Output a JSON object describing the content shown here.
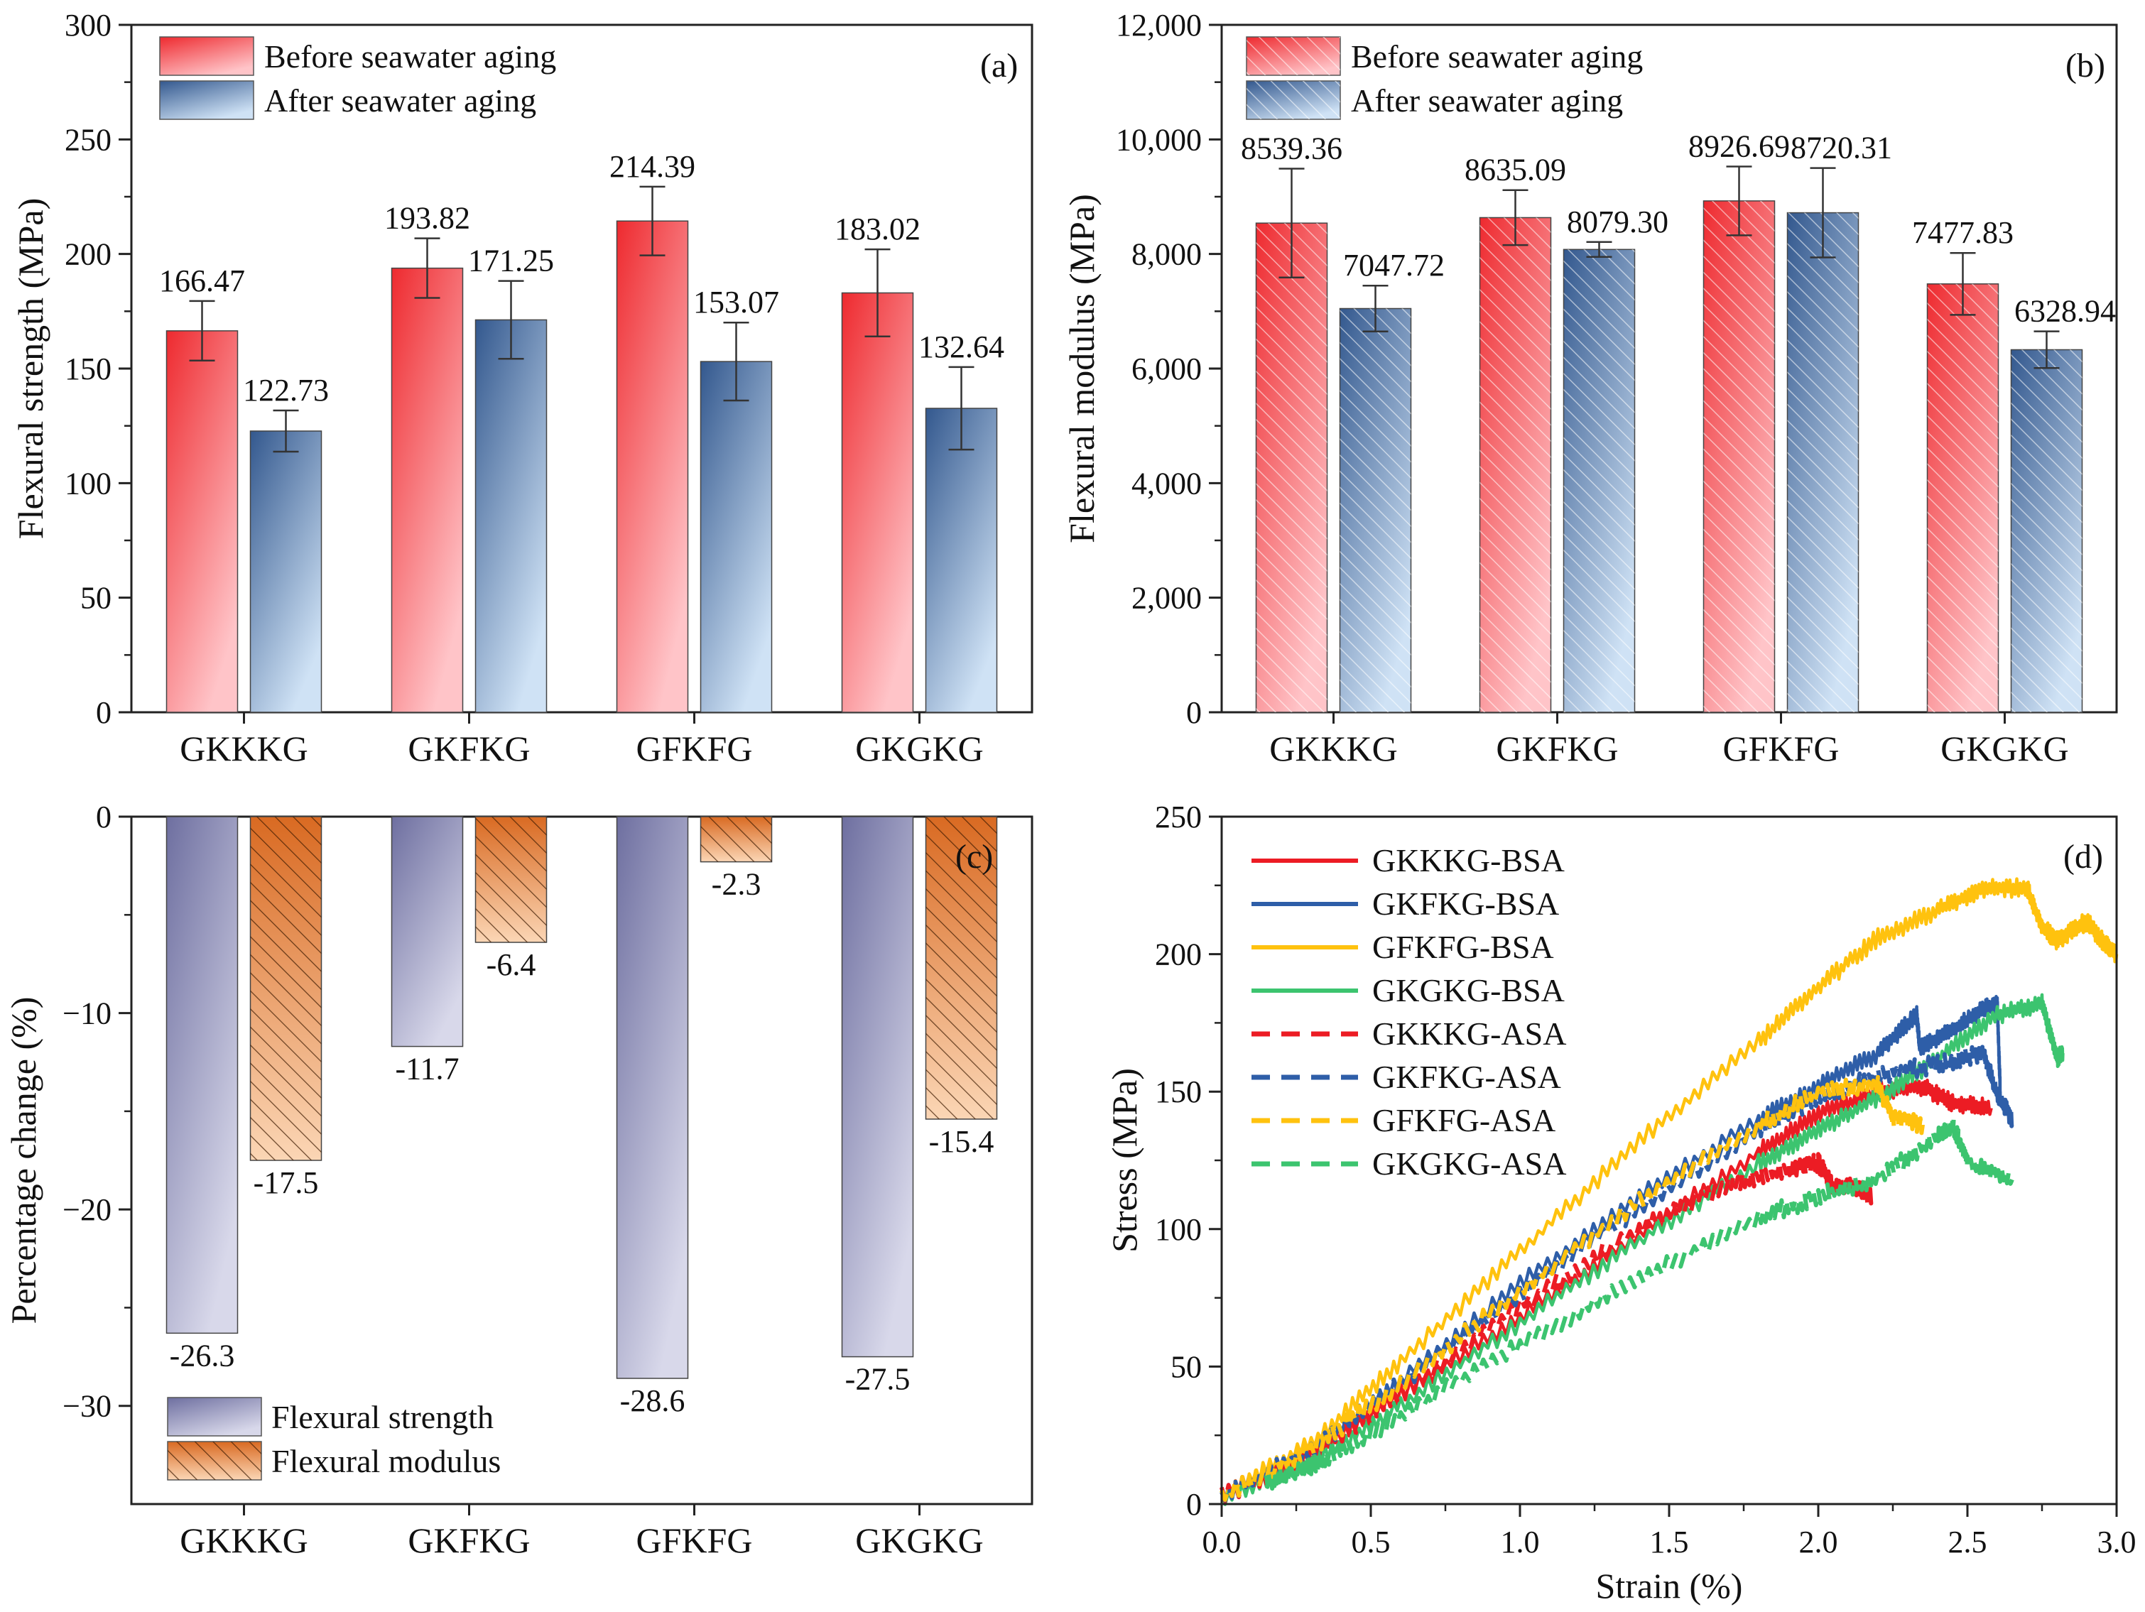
{
  "colors": {
    "red": "#ee2a2f",
    "red_light": "#ffc4c8",
    "blue": "#33588e",
    "blue_light": "#cfe2f5",
    "purple": "#6e6fa0",
    "purple_light": "#d8d8ea",
    "orange": "#d96a22",
    "orange_light": "#fbd6b5",
    "line_red": "#ec1c24",
    "line_blue": "#2e5ea8",
    "line_yellow": "#ffc20e",
    "line_green": "#3cc46f"
  },
  "chart_data": [
    {
      "id": "a",
      "type": "bar",
      "panel_label": "(a)",
      "ylabel": "Flexural strength (MPa)",
      "categories": [
        "GKKKG",
        "GKFKG",
        "GFKFG",
        "GKGKG"
      ],
      "ylim": [
        0,
        300
      ],
      "yticks": [
        "0",
        "50",
        "100",
        "150",
        "200",
        "250",
        "300"
      ],
      "ytick_values": [
        0,
        50,
        100,
        150,
        200,
        250,
        300
      ],
      "hatched": false,
      "legend": [
        "Before seawater aging",
        "After seawater aging"
      ],
      "series": [
        {
          "name": "Before seawater aging",
          "values": [
            166.47,
            193.82,
            214.39,
            183.02
          ],
          "errors": [
            13,
            13,
            15,
            19
          ],
          "labels": [
            "166.47",
            "193.82",
            "214.39",
            "183.02"
          ]
        },
        {
          "name": "After seawater aging",
          "values": [
            122.73,
            171.25,
            153.07,
            132.64
          ],
          "errors": [
            9,
            17,
            17,
            18
          ],
          "labels": [
            "122.73",
            "171.25",
            "153.07",
            "132.64"
          ]
        }
      ]
    },
    {
      "id": "b",
      "type": "bar",
      "panel_label": "(b)",
      "ylabel": "Flexural modulus (MPa)",
      "categories": [
        "GKKKG",
        "GKFKG",
        "GFKFG",
        "GKGKG"
      ],
      "ylim": [
        0,
        12000
      ],
      "yticks": [
        "0",
        "2,000",
        "4,000",
        "6,000",
        "8,000",
        "10,000",
        "12,000"
      ],
      "ytick_values": [
        0,
        2000,
        4000,
        6000,
        8000,
        10000,
        12000
      ],
      "hatched": true,
      "legend": [
        "Before seawater aging",
        "After seawater aging"
      ],
      "series": [
        {
          "name": "Before seawater aging",
          "values": [
            8539.36,
            8635.09,
            8926.69,
            7477.83
          ],
          "errors": [
            950,
            480,
            600,
            540
          ],
          "labels": [
            "8539.36",
            "8635.09",
            "8926.69",
            "7477.83"
          ]
        },
        {
          "name": "After seawater aging",
          "values": [
            7047.72,
            8079.3,
            8720.31,
            6328.94
          ],
          "errors": [
            400,
            130,
            780,
            320
          ],
          "labels": [
            "7047.72",
            "8079.30",
            "8720.31",
            "6328.94"
          ]
        }
      ]
    },
    {
      "id": "c",
      "type": "bar",
      "panel_label": "(c)",
      "ylabel": "Percentage change (%)",
      "categories": [
        "GKKKG",
        "GKFKG",
        "GFKFG",
        "GKGKG"
      ],
      "ylim": [
        -35,
        0
      ],
      "yticks": [
        "0",
        "−10",
        "−20",
        "−30"
      ],
      "ytick_values": [
        0,
        -10,
        -20,
        -30
      ],
      "legend": [
        "Flexural strength",
        "Flexural modulus"
      ],
      "series": [
        {
          "name": "Flexural strength",
          "values": [
            -26.3,
            -11.7,
            -28.6,
            -27.5
          ],
          "labels": [
            "-26.3",
            "-11.7",
            "-28.6",
            "-27.5"
          ]
        },
        {
          "name": "Flexural modulus",
          "values": [
            -17.5,
            -6.4,
            -2.3,
            -15.4
          ],
          "labels": [
            "-17.5",
            "-6.4",
            "-2.3",
            "-15.4"
          ]
        }
      ]
    },
    {
      "id": "d",
      "type": "line",
      "panel_label": "(d)",
      "xlabel": "Strain (%)",
      "ylabel": "Stress (MPa)",
      "xlim": [
        0,
        3
      ],
      "ylim": [
        0,
        250
      ],
      "xticks": [
        "0.0",
        "0.5",
        "1.0",
        "1.5",
        "2.0",
        "2.5",
        "3.0"
      ],
      "xtick_values": [
        0,
        0.5,
        1,
        1.5,
        2,
        2.5,
        3
      ],
      "yticks": [
        "0",
        "50",
        "100",
        "150",
        "200",
        "250"
      ],
      "ytick_values": [
        0,
        50,
        100,
        150,
        200,
        250
      ],
      "series": [
        {
          "name": "GKKKG-BSA",
          "color": "#ec1c24",
          "dash": false,
          "x": [
            0,
            0.3,
            0.6,
            1.0,
            1.4,
            1.8,
            2.0,
            2.2,
            2.35,
            2.45,
            2.58
          ],
          "y": [
            3,
            18,
            40,
            68,
            98,
            128,
            142,
            150,
            152,
            146,
            144
          ]
        },
        {
          "name": "GKFKG-BSA",
          "color": "#2e5ea8",
          "dash": false,
          "x": [
            0,
            0.3,
            0.6,
            1.0,
            1.4,
            1.8,
            2.0,
            2.2,
            2.33,
            2.34,
            2.45,
            2.55,
            2.6,
            2.61
          ],
          "y": [
            3,
            20,
            45,
            80,
            112,
            140,
            152,
            164,
            178,
            166,
            172,
            180,
            182,
            150
          ]
        },
        {
          "name": "GFKFG-BSA",
          "color": "#ffc20e",
          "dash": false,
          "x": [
            0,
            0.3,
            0.6,
            1.0,
            1.4,
            1.8,
            2.0,
            2.2,
            2.4,
            2.55,
            2.7,
            2.75,
            2.8,
            2.9,
            2.95,
            3.0
          ],
          "y": [
            3,
            22,
            52,
            92,
            132,
            168,
            188,
            206,
            216,
            224,
            224,
            210,
            205,
            212,
            205,
            200
          ]
        },
        {
          "name": "GKGKG-BSA",
          "color": "#3cc46f",
          "dash": false,
          "x": [
            0,
            0.3,
            0.6,
            1.0,
            1.4,
            1.8,
            2.0,
            2.2,
            2.4,
            2.6,
            2.75,
            2.8,
            2.82
          ],
          "y": [
            2,
            15,
            36,
            66,
            96,
            124,
            136,
            148,
            162,
            178,
            182,
            162,
            164
          ]
        },
        {
          "name": "GKKKG-ASA",
          "color": "#ec1c24",
          "dash": true,
          "x": [
            0,
            0.3,
            0.6,
            1.0,
            1.4,
            1.7,
            1.9,
            2.0,
            2.05,
            2.1,
            2.18
          ],
          "y": [
            3,
            18,
            40,
            72,
            100,
            116,
            122,
            124,
            116,
            116,
            112
          ]
        },
        {
          "name": "GKFKG-ASA",
          "color": "#2e5ea8",
          "dash": true,
          "x": [
            0,
            0.3,
            0.6,
            1.0,
            1.4,
            1.8,
            2.0,
            2.2,
            2.4,
            2.55,
            2.6,
            2.65
          ],
          "y": [
            3,
            20,
            44,
            76,
            108,
            136,
            148,
            156,
            160,
            164,
            150,
            140
          ]
        },
        {
          "name": "GFKFG-ASA",
          "color": "#ffc20e",
          "dash": true,
          "x": [
            0,
            0.3,
            0.6,
            1.0,
            1.4,
            1.8,
            2.0,
            2.2,
            2.25,
            2.35
          ],
          "y": [
            3,
            20,
            44,
            78,
            110,
            138,
            150,
            152,
            140,
            138
          ]
        },
        {
          "name": "GKGKG-ASA",
          "color": "#3cc46f",
          "dash": true,
          "x": [
            0.15,
            0.25,
            0.35,
            0.6,
            1.0,
            1.4,
            1.8,
            2.0,
            2.2,
            2.4,
            2.45,
            2.5,
            2.65
          ],
          "y": [
            8,
            12,
            16,
            32,
            58,
            82,
            104,
            112,
            118,
            134,
            138,
            124,
            118
          ]
        }
      ]
    }
  ]
}
